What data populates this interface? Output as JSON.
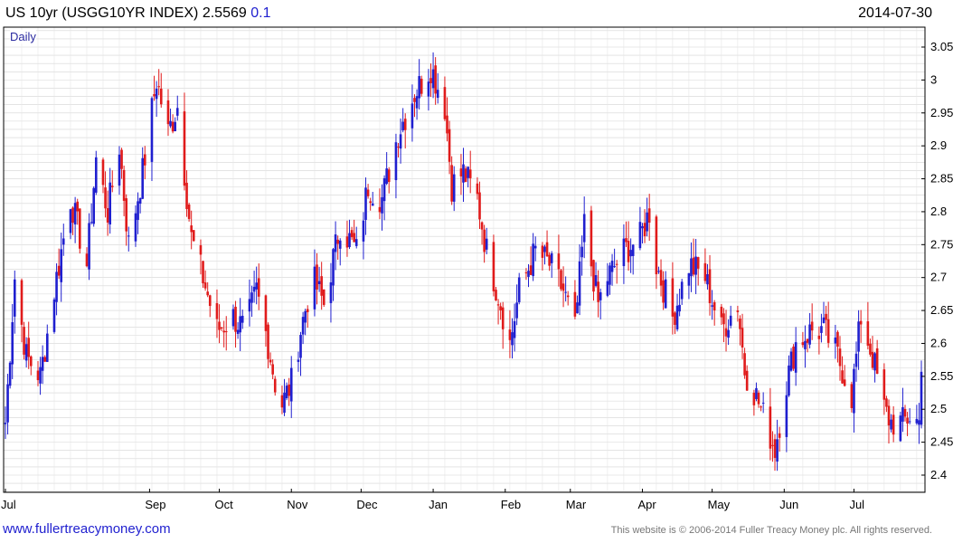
{
  "header": {
    "title": "US 10yr (USGG10YR INDEX) 2.5569",
    "change": "0.1",
    "date": "2014-07-30"
  },
  "frequency_label": "Daily",
  "footer": {
    "website": "www.fullertreacymoney.com",
    "copyright": "This website is © 2006-2014 Fuller Treacy Money plc. All rights reserved."
  },
  "colors": {
    "up": "#1f1fcf",
    "down": "#e01b1b",
    "grid": "#d4d4d4"
  },
  "chart_data": {
    "type": "candlestick",
    "title": "US 10yr (USGG10YR INDEX) 2.5569",
    "ylim": [
      2.4,
      3.05
    ],
    "y_ticks": [
      "3.05",
      "3",
      "2.95",
      "2.9",
      "2.85",
      "2.8",
      "2.75",
      "2.7",
      "2.65",
      "2.6",
      "2.55",
      "2.5",
      "2.45",
      "2.4"
    ],
    "x_ticks": [
      "Jul",
      "Sep",
      "Oct",
      "Nov",
      "Dec",
      "Jan",
      "Feb",
      "Mar",
      "Apr",
      "May",
      "Jun",
      "Jul"
    ],
    "grid": true,
    "y_axis_position": "right",
    "path_points": [
      [
        "2013-07-01",
        2.48
      ],
      [
        "2013-07-05",
        2.7
      ],
      [
        "2013-07-10",
        2.58
      ],
      [
        "2013-07-16",
        2.55
      ],
      [
        "2013-07-22",
        2.68
      ],
      [
        "2013-07-29",
        2.82
      ],
      [
        "2013-08-05",
        2.72
      ],
      [
        "2013-08-09",
        2.88
      ],
      [
        "2013-08-14",
        2.8
      ],
      [
        "2013-08-19",
        2.9
      ],
      [
        "2013-08-23",
        2.75
      ],
      [
        "2013-08-29",
        2.86
      ],
      [
        "2013-09-04",
        3.0
      ],
      [
        "2013-09-09",
        2.92
      ],
      [
        "2013-09-13",
        2.96
      ],
      [
        "2013-09-19",
        2.76
      ],
      [
        "2013-09-24",
        2.7
      ],
      [
        "2013-09-30",
        2.62
      ],
      [
        "2013-10-07",
        2.64
      ],
      [
        "2013-10-12",
        2.62
      ],
      [
        "2013-10-17",
        2.68
      ],
      [
        "2013-10-22",
        2.6
      ],
      [
        "2013-10-27",
        2.5
      ],
      [
        "2013-11-01",
        2.54
      ],
      [
        "2013-11-05",
        2.62
      ],
      [
        "2013-11-10",
        2.7
      ],
      [
        "2013-11-15",
        2.66
      ],
      [
        "2013-11-22",
        2.78
      ],
      [
        "2013-11-29",
        2.74
      ],
      [
        "2013-12-04",
        2.84
      ],
      [
        "2013-12-10",
        2.82
      ],
      [
        "2013-12-17",
        2.92
      ],
      [
        "2013-12-24",
        2.98
      ],
      [
        "2013-12-31",
        3.02
      ],
      [
        "2014-01-06",
        2.96
      ],
      [
        "2014-01-09",
        2.84
      ],
      [
        "2014-01-14",
        2.86
      ],
      [
        "2014-01-20",
        2.82
      ],
      [
        "2014-01-24",
        2.74
      ],
      [
        "2014-01-30",
        2.66
      ],
      [
        "2014-02-03",
        2.6
      ],
      [
        "2014-02-07",
        2.68
      ],
      [
        "2014-02-14",
        2.74
      ],
      [
        "2014-02-20",
        2.72
      ],
      [
        "2014-02-26",
        2.68
      ],
      [
        "2014-03-03",
        2.62
      ],
      [
        "2014-03-07",
        2.78
      ],
      [
        "2014-03-13",
        2.66
      ],
      [
        "2014-03-17",
        2.7
      ],
      [
        "2014-03-24",
        2.74
      ],
      [
        "2014-03-31",
        2.76
      ],
      [
        "2014-04-04",
        2.8
      ],
      [
        "2014-04-07",
        2.72
      ],
      [
        "2014-04-14",
        2.64
      ],
      [
        "2014-04-21",
        2.72
      ],
      [
        "2014-04-28",
        2.7
      ],
      [
        "2014-05-05",
        2.62
      ],
      [
        "2014-05-12",
        2.66
      ],
      [
        "2014-05-15",
        2.56
      ],
      [
        "2014-05-20",
        2.52
      ],
      [
        "2014-05-28",
        2.44
      ],
      [
        "2014-06-02",
        2.54
      ],
      [
        "2014-06-06",
        2.6
      ],
      [
        "2014-06-13",
        2.62
      ],
      [
        "2014-06-18",
        2.62
      ],
      [
        "2014-06-24",
        2.58
      ],
      [
        "2014-06-30",
        2.52
      ],
      [
        "2014-07-04",
        2.64
      ],
      [
        "2014-07-09",
        2.58
      ],
      [
        "2014-07-14",
        2.5
      ],
      [
        "2014-07-17",
        2.48
      ],
      [
        "2014-07-22",
        2.48
      ],
      [
        "2014-07-25",
        2.49
      ],
      [
        "2014-07-29",
        2.48
      ],
      [
        "2014-07-30",
        2.5569
      ]
    ]
  }
}
